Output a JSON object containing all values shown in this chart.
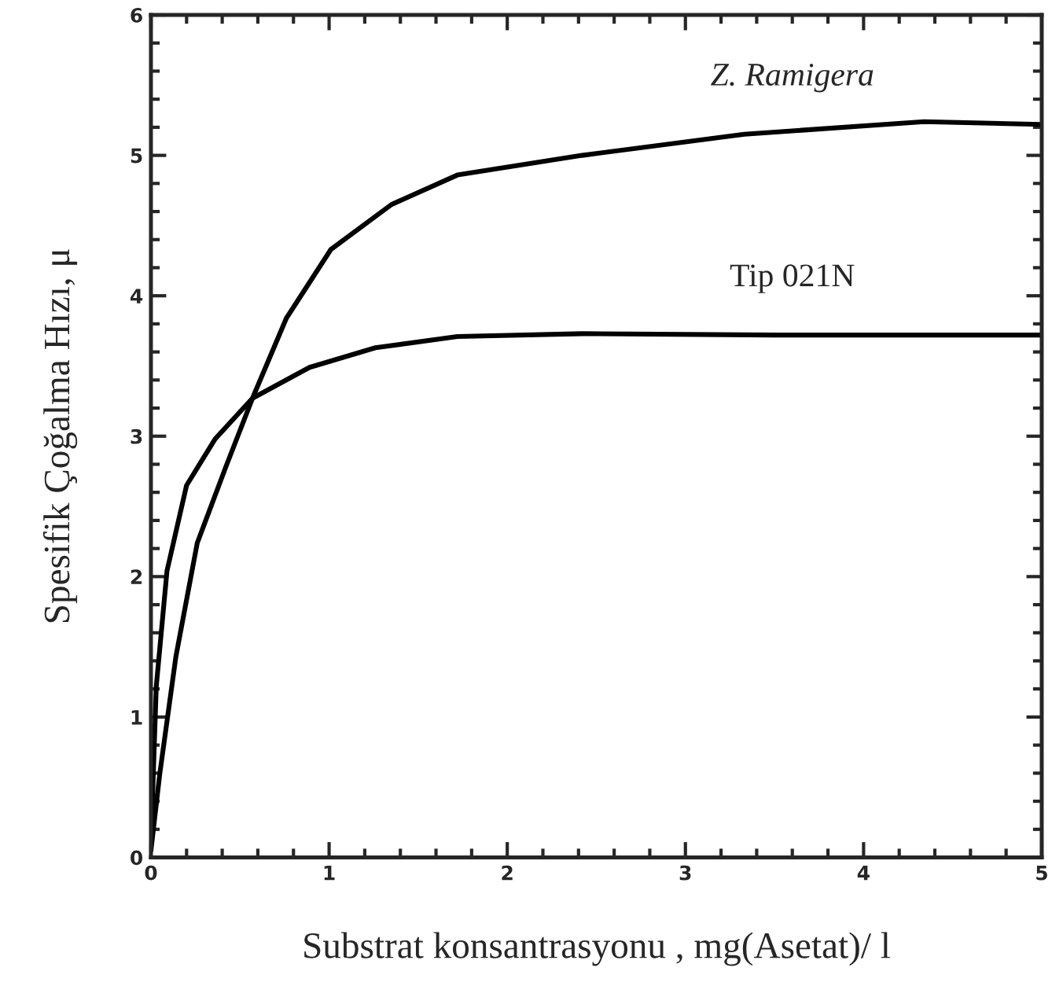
{
  "chart_data": {
    "type": "line",
    "xlabel": "Substrat konsantrasyonu , mg(Asetat)/ l",
    "ylabel": "Spesifik Çoğalma Hızı, μ",
    "xlim": [
      0,
      5
    ],
    "xticks": [
      0,
      1,
      2,
      3,
      4,
      5
    ],
    "ylim": [
      0,
      6
    ],
    "yticks": [
      0,
      1,
      2,
      3,
      4,
      5,
      6
    ],
    "grid": false,
    "legend": false,
    "marker": "none",
    "line_style": "solid",
    "series": [
      {
        "name": "Z. Ramigera",
        "color": "#000000",
        "x": [
          0,
          0.05,
          0.14,
          0.26,
          0.42,
          0.57,
          0.76,
          1.01,
          1.35,
          1.72,
          2.42,
          3.33,
          4.34,
          5
        ],
        "values": [
          0.05,
          0.6,
          1.43,
          2.24,
          2.78,
          3.27,
          3.84,
          4.33,
          4.65,
          4.86,
          5.0,
          5.15,
          5.24,
          5.22
        ]
      },
      {
        "name": "Tip 021N",
        "color": "#000000",
        "x": [
          0,
          0.03,
          0.09,
          0.2,
          0.36,
          0.57,
          0.89,
          1.26,
          1.72,
          2.42,
          3.5,
          5
        ],
        "values": [
          0.1,
          1.22,
          2.04,
          2.65,
          2.98,
          3.27,
          3.49,
          3.63,
          3.71,
          3.73,
          3.72,
          3.72
        ]
      }
    ]
  }
}
